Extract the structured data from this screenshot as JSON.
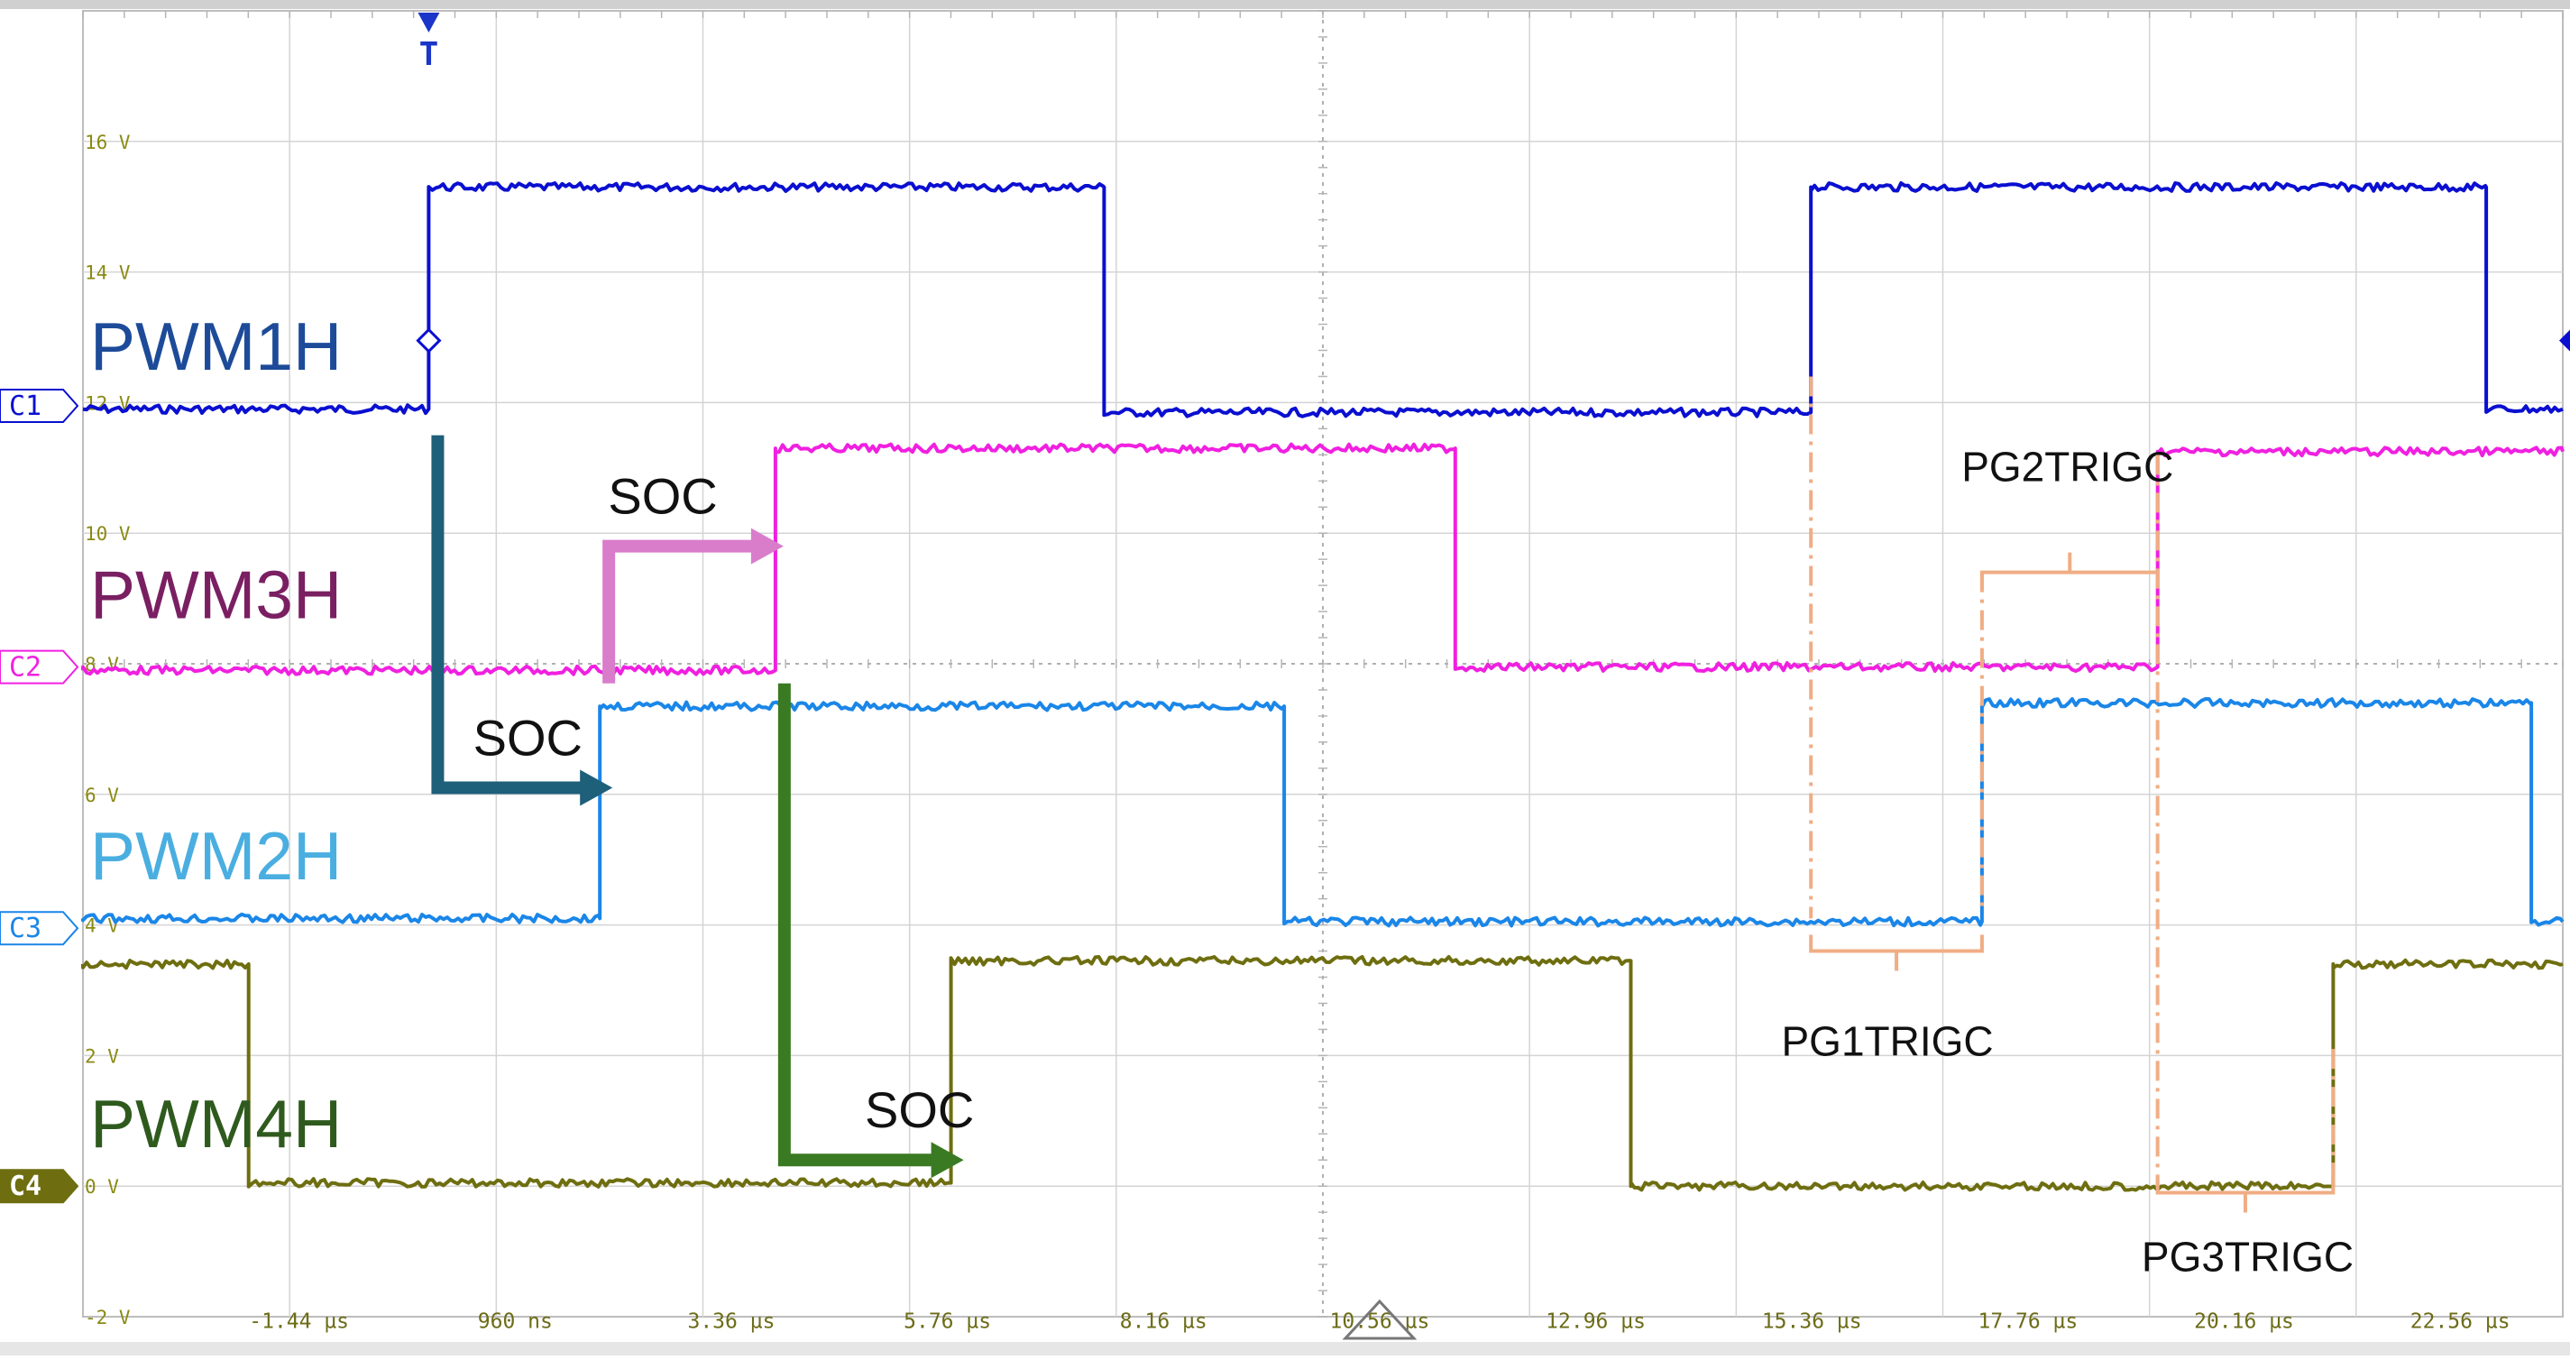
{
  "chart_data": {
    "type": "line",
    "title": "",
    "xlabel": "",
    "ylabel": "",
    "xlim_us": [
      -3.84,
      23.7
    ],
    "ylim_v": [
      -2,
      18
    ],
    "grid": true,
    "legend": "none",
    "y_ticks": [
      "16 V",
      "14 V",
      "12 V",
      "10 V",
      "8 V",
      "6 V",
      "4 V",
      "2 V",
      "0 V",
      "-2 V"
    ],
    "x_ticks": [
      "-1.44 µs",
      "960 ns",
      "3.36 µs",
      "5.76 µs",
      "8.16 µs",
      "10.56 µs",
      "12.96 µs",
      "15.36 µs",
      "17.76 µs",
      "20.16 µs",
      "22.56 µs"
    ],
    "trigger_marker": "T",
    "channel_markers": [
      "C1",
      "C2",
      "C3",
      "C4"
    ],
    "series": [
      {
        "name": "PWM1H",
        "channel": "C1",
        "color": "#0a0fd0",
        "label_color": "#1d4b99",
        "label_y_v": 12.5,
        "x": [
          -3.84,
          0.0,
          0.0,
          7.5,
          7.5,
          15.35,
          15.35,
          22.85,
          22.85,
          23.7
        ],
        "y": [
          11.9,
          11.9,
          15.3,
          15.3,
          11.85,
          11.85,
          15.3,
          15.3,
          11.9,
          11.9
        ]
      },
      {
        "name": "PWM3H",
        "channel": "C2",
        "color": "#f020e0",
        "label_color": "#7a1f62",
        "label_y_v": 8.7,
        "x": [
          -3.84,
          3.85,
          3.85,
          11.4,
          11.4,
          19.2,
          19.2,
          23.7
        ],
        "y": [
          7.9,
          7.9,
          11.3,
          11.3,
          7.95,
          7.95,
          11.25,
          11.25
        ]
      },
      {
        "name": "PWM2H",
        "channel": "C3",
        "color": "#1a86e8",
        "label_color": "#4aaee0",
        "label_y_v": 4.7,
        "x": [
          -3.84,
          1.9,
          1.9,
          9.5,
          9.5,
          17.25,
          17.25,
          23.35,
          23.35,
          23.7
        ],
        "y": [
          4.1,
          4.1,
          7.35,
          7.35,
          4.05,
          4.05,
          7.4,
          7.4,
          4.05,
          4.05
        ]
      },
      {
        "name": "PWM4H",
        "channel": "C4",
        "color": "#6e6e10",
        "label_color": "#2f5a1e",
        "label_y_v": 0.6,
        "x": [
          -3.84,
          -2.0,
          -2.0,
          5.8,
          5.8,
          13.35,
          13.35,
          21.15,
          21.15,
          23.7
        ],
        "y": [
          3.4,
          3.4,
          0.05,
          0.05,
          3.45,
          3.45,
          0.0,
          0.0,
          3.4,
          3.4
        ]
      }
    ],
    "annotations": [
      {
        "text": "SOC",
        "color": "#1e5f7a",
        "path": [
          [
            0.1,
            11.5
          ],
          [
            0.1,
            6.1
          ],
          [
            1.7,
            6.1
          ]
        ],
        "label_at": [
          1.1,
          6.6
        ]
      },
      {
        "text": "SOC",
        "color": "#d97dcb",
        "path": [
          [
            2.0,
            7.7
          ],
          [
            2.0,
            9.8
          ],
          [
            3.6,
            9.8
          ]
        ],
        "label_at": [
          2.6,
          10.3
        ]
      },
      {
        "text": "SOC",
        "color": "#3a7a22",
        "path": [
          [
            3.95,
            7.7
          ],
          [
            3.95,
            0.4
          ],
          [
            5.6,
            0.4
          ]
        ],
        "label_at": [
          5.45,
          0.9
        ]
      },
      {
        "text": "PG1TRIGC",
        "color": "#f0ad84",
        "bracket": [
          15.35,
          17.25,
          3.6
        ],
        "dashdot_x": 15.35,
        "dashdot_v": [
          12.4,
          4.1
        ],
        "label_at": [
          16.2,
          2.0
        ]
      },
      {
        "text": "PG2TRIGC",
        "color": "#f0ad84",
        "bracket": [
          17.25,
          19.2,
          9.4
        ],
        "dashdot_x": 17.25,
        "dashdot_v": [
          9.4,
          4.2
        ],
        "label_at": [
          18.2,
          10.8
        ]
      },
      {
        "text": "PG3TRIGC",
        "color": "#f0ad84",
        "bracket": [
          19.2,
          21.15,
          -0.1
        ],
        "dashdot_x": 19.2,
        "dashdot_v": [
          11.2,
          0.0
        ],
        "dashdot2_x": 21.15,
        "dashdot2_v": [
          2.1,
          0.0
        ],
        "label_at": [
          20.2,
          -1.3
        ]
      }
    ]
  }
}
